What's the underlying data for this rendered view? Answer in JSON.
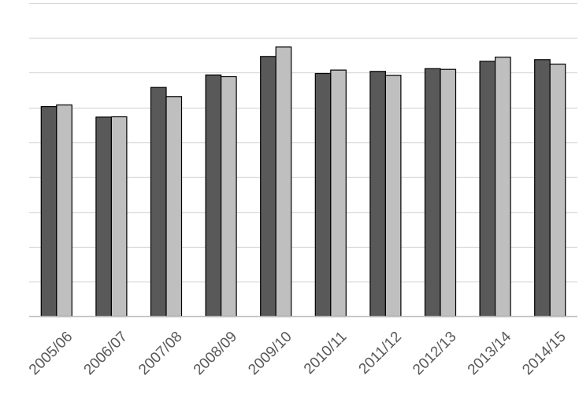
{
  "chart_data": {
    "type": "bar",
    "categories": [
      "2005/06",
      "2006/07",
      "2007/08",
      "2008/09",
      "2009/10",
      "2010/11",
      "2011/12",
      "2012/13",
      "2013/14",
      "2014/15"
    ],
    "series": [
      {
        "color": "#595959",
        "values": [
          6.02,
          5.72,
          6.57,
          6.93,
          7.46,
          6.97,
          7.03,
          7.11,
          7.32,
          7.37
        ]
      },
      {
        "color": "#bfbfbf",
        "values": [
          6.07,
          5.73,
          6.31,
          6.88,
          7.73,
          7.07,
          6.92,
          7.09,
          7.44,
          7.24
        ]
      }
    ],
    "ylim": [
      0,
      9
    ],
    "y_gridline_step": 1,
    "grid": true,
    "y_tick_labels_shown": false,
    "legend": "none",
    "bar_outline_color": "#000000",
    "gridline_color": "#d9d9d9",
    "axis_line_color": "#bfbfbf"
  }
}
